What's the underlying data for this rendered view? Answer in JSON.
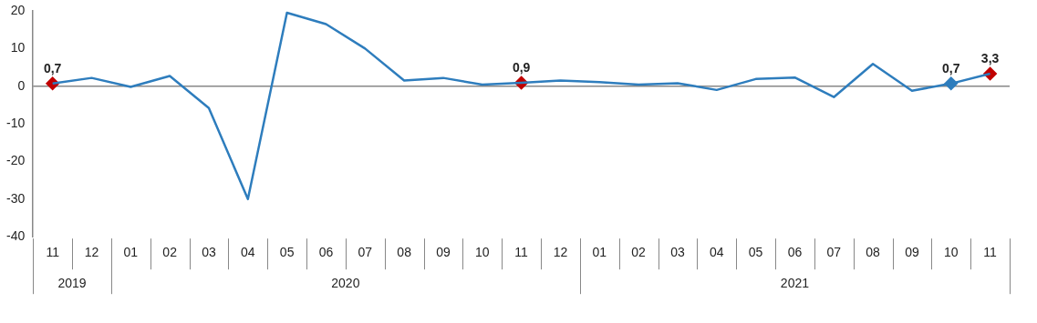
{
  "chart_data": {
    "type": "line",
    "categories": [
      "11",
      "12",
      "01",
      "02",
      "03",
      "04",
      "05",
      "06",
      "07",
      "08",
      "09",
      "10",
      "11",
      "12",
      "01",
      "02",
      "03",
      "04",
      "05",
      "06",
      "07",
      "08",
      "09",
      "10",
      "11"
    ],
    "series": [
      {
        "color": "#2e7dbd",
        "marker": "none",
        "values": [
          0.7,
          2.2,
          -0.2,
          2.7,
          -5.8,
          -30.0,
          19.5,
          16.5,
          10.0,
          1.5,
          2.2,
          0.4,
          0.9,
          1.5,
          1.1,
          0.4,
          0.8,
          -1.0,
          1.9,
          2.3,
          -2.9,
          5.9,
          -1.2,
          0.7,
          3.3
        ]
      },
      {
        "type": "scatter",
        "color": "#c00000",
        "values": [
          0.7,
          null,
          null,
          null,
          null,
          null,
          null,
          null,
          null,
          null,
          null,
          null,
          0.9,
          null,
          null,
          null,
          null,
          null,
          null,
          null,
          null,
          null,
          null,
          0.7,
          3.3
        ],
        "colors": [
          "#c00000",
          null,
          null,
          null,
          null,
          null,
          null,
          null,
          null,
          null,
          null,
          null,
          "#c00000",
          null,
          null,
          null,
          null,
          null,
          null,
          null,
          null,
          null,
          null,
          "#2e7dbd",
          "#c00000"
        ],
        "value_labels": [
          "0,7",
          null,
          null,
          null,
          null,
          null,
          null,
          null,
          null,
          null,
          null,
          null,
          "0,9",
          null,
          null,
          null,
          null,
          null,
          null,
          null,
          null,
          null,
          null,
          "0,7",
          "3,3"
        ]
      }
    ],
    "annotations": [
      "2019",
      "2020",
      "2021"
    ],
    "ref_lines": [
      {
        "axis": "y",
        "value": 0,
        "color": "#888888"
      }
    ],
    "ylim": [
      -40,
      20
    ],
    "yticks": [
      -40,
      -30,
      -20,
      -10,
      0,
      10,
      20
    ],
    "grid": false,
    "legend": false,
    "marker": "diamond",
    "line_style": "solid"
  }
}
